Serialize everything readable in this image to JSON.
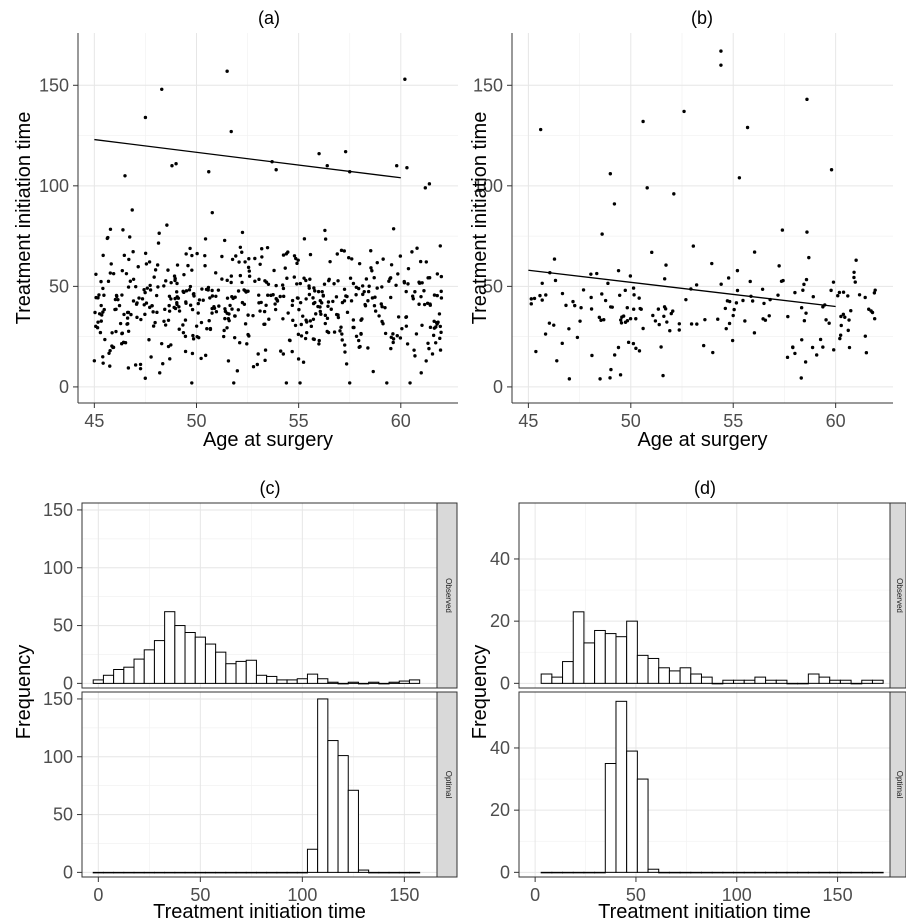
{
  "chart_data": [
    {
      "id": "a",
      "type": "scatter",
      "title": "(a)",
      "xlabel": "Age at surgery",
      "ylabel": "Treatment initiation time",
      "xlim": [
        44.2,
        62.8
      ],
      "ylim": [
        -8,
        176
      ],
      "xticks": [
        45,
        50,
        55,
        60
      ],
      "yticks": [
        0,
        50,
        100,
        150
      ],
      "grid": true,
      "fit_line": {
        "x": [
          45,
          60
        ],
        "y": [
          123,
          104
        ]
      },
      "n_points": 560,
      "points_sample": [
        [
          47.5,
          134
        ],
        [
          48.3,
          148
        ],
        [
          51.5,
          157
        ],
        [
          51.7,
          127
        ],
        [
          60.2,
          153
        ],
        [
          56.0,
          116
        ],
        [
          57.3,
          117
        ],
        [
          59.8,
          110
        ],
        [
          60.3,
          109
        ],
        [
          53.7,
          112
        ],
        [
          53.9,
          108
        ],
        [
          56.4,
          110
        ],
        [
          57.5,
          107
        ],
        [
          48.8,
          110
        ],
        [
          49.0,
          111
        ],
        [
          50.6,
          107
        ],
        [
          61.4,
          101
        ],
        [
          61.2,
          99
        ],
        [
          46.5,
          105
        ],
        [
          45.0,
          13
        ],
        [
          48.2,
          7
        ],
        [
          54.4,
          2
        ],
        [
          57.5,
          2
        ],
        [
          61.0,
          7
        ],
        [
          52.0,
          8
        ]
      ],
      "point_cloud": {
        "x_range": [
          45,
          62
        ],
        "y_center": 42,
        "y_spread": 15,
        "y_min": 2,
        "y_max": 88
      }
    },
    {
      "id": "b",
      "type": "scatter",
      "title": "(b)",
      "xlabel": "Age at surgery",
      "ylabel": "Treatment initiation time",
      "xlim": [
        44.2,
        62.8
      ],
      "ylim": [
        -8,
        176
      ],
      "xticks": [
        45,
        50,
        55,
        60
      ],
      "yticks": [
        0,
        50,
        100,
        150
      ],
      "grid": true,
      "fit_line": {
        "x": [
          45,
          60
        ],
        "y": [
          58,
          40
        ]
      },
      "n_points": 200,
      "points_sample": [
        [
          45.6,
          128
        ],
        [
          50.6,
          132
        ],
        [
          52.6,
          137
        ],
        [
          54.4,
          167
        ],
        [
          54.4,
          160
        ],
        [
          55.7,
          129
        ],
        [
          58.6,
          143
        ],
        [
          59.8,
          108
        ],
        [
          49.0,
          106
        ],
        [
          50.8,
          99
        ],
        [
          52.1,
          96
        ],
        [
          55.3,
          104
        ],
        [
          49.2,
          91
        ],
        [
          48.6,
          76
        ],
        [
          57.4,
          78
        ],
        [
          58.6,
          77
        ],
        [
          47.0,
          4
        ],
        [
          48.5,
          4
        ],
        [
          49.5,
          6
        ],
        [
          45.3,
          44
        ],
        [
          61.8,
          37
        ],
        [
          61.5,
          17
        ],
        [
          60.9,
          57
        ],
        [
          61.0,
          63
        ]
      ],
      "point_cloud": {
        "x_range": [
          45,
          62
        ],
        "y_center": 38,
        "y_spread": 13,
        "y_min": 3,
        "y_max": 80
      }
    },
    {
      "id": "c",
      "type": "bar",
      "title": "(c)",
      "xlabel": "Treatment initiation time",
      "ylabel": "Frequency",
      "xlim": [
        -8,
        166
      ],
      "ylim": [
        -4,
        156
      ],
      "xticks": [
        0,
        50,
        100,
        150
      ],
      "yticks": [
        0,
        50,
        100,
        150
      ],
      "grid": true,
      "bin_width": 5,
      "bin_start": -2.5,
      "facets": [
        {
          "label": "Observed",
          "values": [
            3,
            7,
            12,
            14,
            21,
            29,
            37,
            62,
            50,
            44,
            40,
            34,
            27,
            17,
            19,
            20,
            7,
            6,
            3,
            3,
            4,
            8,
            4,
            1,
            0,
            1,
            0,
            1,
            0,
            1,
            2,
            3
          ]
        },
        {
          "label": "Optimal",
          "values": [
            0,
            0,
            0,
            0,
            0,
            0,
            0,
            0,
            0,
            0,
            0,
            0,
            0,
            0,
            0,
            0,
            0,
            0,
            0,
            0,
            0,
            20,
            150,
            114,
            101,
            71,
            2,
            0,
            0,
            0,
            0,
            0
          ]
        }
      ]
    },
    {
      "id": "d",
      "type": "bar",
      "title": "(d)",
      "xlabel": "Treatment initiation time",
      "ylabel": "Frequency",
      "xlim": [
        -8,
        176
      ],
      "ylim": [
        -1.5,
        58
      ],
      "xticks": [
        0,
        50,
        100,
        150
      ],
      "yticks": [
        0,
        20,
        40
      ],
      "grid": true,
      "bin_width": 5.3,
      "bin_start": 3,
      "facets": [
        {
          "label": "Observed",
          "values": [
            3,
            2,
            7,
            23,
            13,
            17,
            16,
            15,
            20,
            9,
            8,
            5,
            4,
            5,
            3,
            2,
            0,
            1,
            1,
            1,
            2,
            1,
            1,
            0,
            0,
            3,
            2,
            1,
            1,
            0,
            1,
            1
          ]
        },
        {
          "label": "Optimal",
          "values": [
            0,
            0,
            0,
            0,
            0,
            0,
            35,
            55,
            39,
            30,
            1,
            0,
            0,
            0,
            0,
            0,
            0,
            0,
            0,
            0,
            0,
            0,
            0,
            0,
            0,
            0,
            0,
            0,
            0,
            0,
            0,
            0
          ]
        }
      ]
    }
  ]
}
